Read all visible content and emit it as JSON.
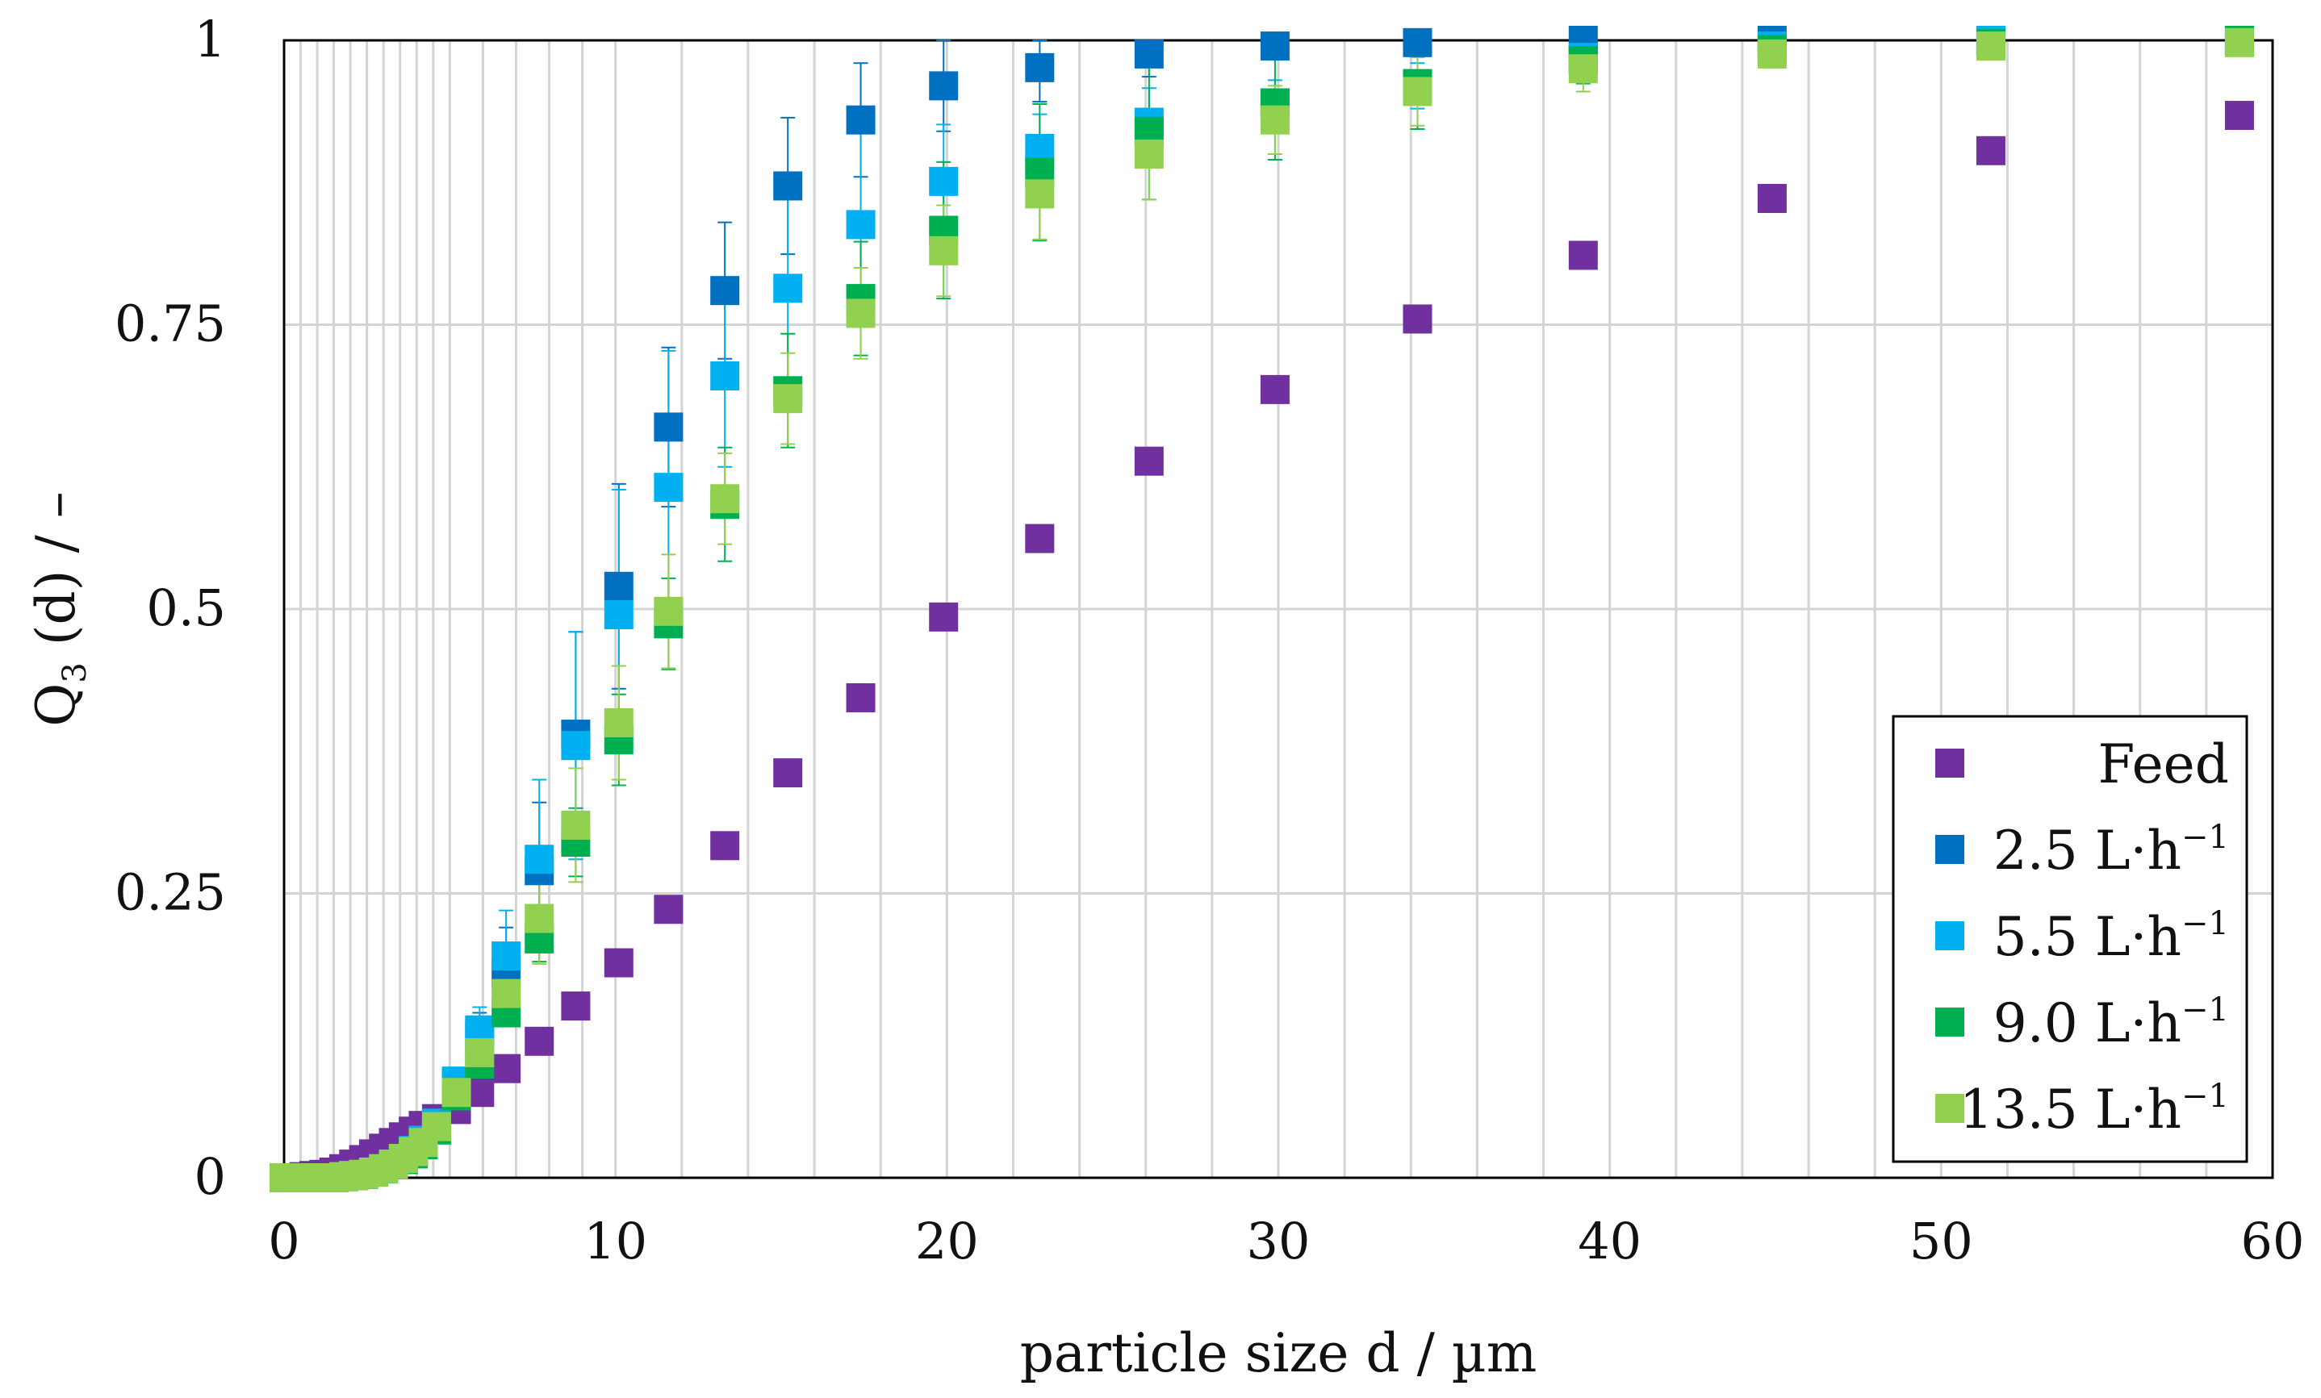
{
  "chart_data": {
    "type": "scatter",
    "title": "",
    "xlabel": "particle size d / µm",
    "ylabel": {
      "main": "Q",
      "sub": "3",
      "rest": " (d) / –"
    },
    "xlim": [
      0,
      60
    ],
    "ylim": [
      0,
      1
    ],
    "x_ticks": [
      0,
      10,
      20,
      30,
      40,
      50,
      60
    ],
    "x_tick_labels": [
      "0",
      "10",
      "20",
      "30",
      "40",
      "50",
      "60"
    ],
    "y_ticks": [
      0,
      0.25,
      0.5,
      0.75,
      1
    ],
    "y_tick_labels": [
      "0",
      "0.25",
      "0.5",
      "0.75",
      "1"
    ],
    "x_minor_grid": [
      0.5,
      1,
      1.5,
      2,
      2.5,
      3,
      3.5,
      4,
      4.5,
      5,
      6,
      7,
      8,
      9,
      10,
      12,
      14,
      16,
      18,
      20,
      22,
      24,
      26,
      28,
      30,
      32,
      34,
      36,
      38,
      40,
      42,
      44,
      46,
      48,
      50,
      52,
      54,
      56,
      58,
      60
    ],
    "grid": true,
    "legend": {
      "position": "bottom-right",
      "entries": [
        {
          "label": "Feed",
          "unit": "",
          "exponent": ""
        },
        {
          "label": "2.5 L·h",
          "unit": "",
          "exponent": "−1"
        },
        {
          "label": "5.5 L·h",
          "unit": "",
          "exponent": "−1"
        },
        {
          "label": "9.0 L·h",
          "unit": "",
          "exponent": "−1"
        },
        {
          "label": "13.5 L·h",
          "unit": "",
          "exponent": "−1"
        }
      ]
    },
    "x": [
      0,
      0.3,
      0.6,
      0.9,
      1.2,
      1.5,
      1.8,
      2.1,
      2.4,
      2.7,
      3.0,
      3.3,
      3.6,
      3.9,
      4.2,
      4.6,
      5.2,
      5.9,
      6.7,
      7.7,
      8.8,
      10.1,
      11.6,
      13.3,
      15.2,
      17.4,
      19.9,
      22.8,
      26.1,
      29.9,
      34.2,
      39.2,
      44.9,
      51.5,
      59.0
    ],
    "series": [
      {
        "name": "Feed",
        "color": "#7030a0",
        "values": [
          0,
          0,
          0.001,
          0.002,
          0.003,
          0.005,
          0.008,
          0.012,
          0.016,
          0.021,
          0.026,
          0.031,
          0.036,
          0.041,
          0.046,
          0.052,
          0.06,
          0.075,
          0.096,
          0.12,
          0.151,
          0.189,
          0.236,
          0.292,
          0.356,
          0.422,
          0.493,
          0.562,
          0.63,
          0.693,
          0.755,
          0.811,
          0.861,
          0.903,
          0.934
        ],
        "errors": []
      },
      {
        "name": "2.5 L·h⁻¹",
        "color": "#0070c0",
        "values": [
          0,
          0,
          0,
          0,
          0,
          0,
          0.001,
          0.002,
          0.003,
          0.005,
          0.008,
          0.012,
          0.017,
          0.023,
          0.031,
          0.045,
          0.08,
          0.125,
          0.18,
          0.27,
          0.39,
          0.52,
          0.66,
          0.78,
          0.872,
          0.93,
          0.96,
          0.976,
          0.988,
          0.995,
          0.998,
          1.0,
          1.0,
          1.0,
          1.0
        ],
        "errors": [
          0,
          0,
          0,
          0,
          0,
          0,
          0.001,
          0.001,
          0.002,
          0.002,
          0.003,
          0.004,
          0.005,
          0.006,
          0.007,
          0.009,
          0.01,
          0.02,
          0.04,
          0.06,
          0.09,
          0.09,
          0.07,
          0.06,
          0.06,
          0.05,
          0.04,
          0.03,
          0.02,
          0.01,
          0.005,
          0.003,
          0.002,
          0.001,
          0.001
        ]
      },
      {
        "name": "5.5 L·h⁻¹",
        "color": "#00b0f0",
        "values": [
          0,
          0,
          0,
          0,
          0,
          0,
          0.001,
          0.002,
          0.003,
          0.005,
          0.008,
          0.012,
          0.017,
          0.024,
          0.033,
          0.048,
          0.085,
          0.13,
          0.195,
          0.28,
          0.38,
          0.495,
          0.607,
          0.705,
          0.782,
          0.838,
          0.876,
          0.905,
          0.928,
          0.945,
          0.96,
          0.985,
          0.995,
          1.0,
          1.0
        ],
        "errors": [
          0,
          0,
          0,
          0,
          0,
          0,
          0.001,
          0.001,
          0.002,
          0.002,
          0.003,
          0.004,
          0.005,
          0.006,
          0.007,
          0.009,
          0.01,
          0.02,
          0.04,
          0.07,
          0.1,
          0.11,
          0.12,
          0.08,
          0.08,
          0.09,
          0.05,
          0.03,
          0.03,
          0.02,
          0.02,
          0.01,
          0.005,
          0.002,
          0.001
        ]
      },
      {
        "name": "9.0 L·h⁻¹",
        "color": "#00b050",
        "values": [
          0,
          0,
          0,
          0,
          0,
          0,
          0.001,
          0.002,
          0.003,
          0.005,
          0.008,
          0.012,
          0.016,
          0.021,
          0.029,
          0.042,
          0.072,
          0.1,
          0.145,
          0.21,
          0.295,
          0.385,
          0.487,
          0.592,
          0.692,
          0.773,
          0.833,
          0.884,
          0.92,
          0.945,
          0.962,
          0.982,
          0.992,
          0.997,
          1.0
        ],
        "errors": [
          0,
          0,
          0,
          0,
          0,
          0,
          0.001,
          0.001,
          0.002,
          0.002,
          0.003,
          0.004,
          0.005,
          0.006,
          0.007,
          0.008,
          0.01,
          0.01,
          0.015,
          0.02,
          0.03,
          0.04,
          0.04,
          0.05,
          0.05,
          0.05,
          0.06,
          0.06,
          0.06,
          0.05,
          0.04,
          0.02,
          0.01,
          0.005,
          0.002
        ]
      },
      {
        "name": "13.5 L·h⁻¹",
        "color": "#92d050",
        "values": [
          0,
          0,
          0,
          0,
          0,
          0,
          0.001,
          0.002,
          0.003,
          0.005,
          0.008,
          0.012,
          0.017,
          0.023,
          0.031,
          0.045,
          0.075,
          0.11,
          0.162,
          0.228,
          0.31,
          0.4,
          0.498,
          0.597,
          0.685,
          0.76,
          0.815,
          0.865,
          0.9,
          0.93,
          0.955,
          0.975,
          0.988,
          0.995,
          0.998
        ],
        "errors": [
          0,
          0,
          0,
          0,
          0,
          0,
          0.001,
          0.001,
          0.002,
          0.002,
          0.003,
          0.004,
          0.005,
          0.006,
          0.007,
          0.008,
          0.01,
          0.015,
          0.02,
          0.04,
          0.05,
          0.05,
          0.05,
          0.04,
          0.04,
          0.04,
          0.04,
          0.04,
          0.04,
          0.03,
          0.03,
          0.02,
          0.01,
          0.005,
          0.002
        ]
      }
    ]
  }
}
